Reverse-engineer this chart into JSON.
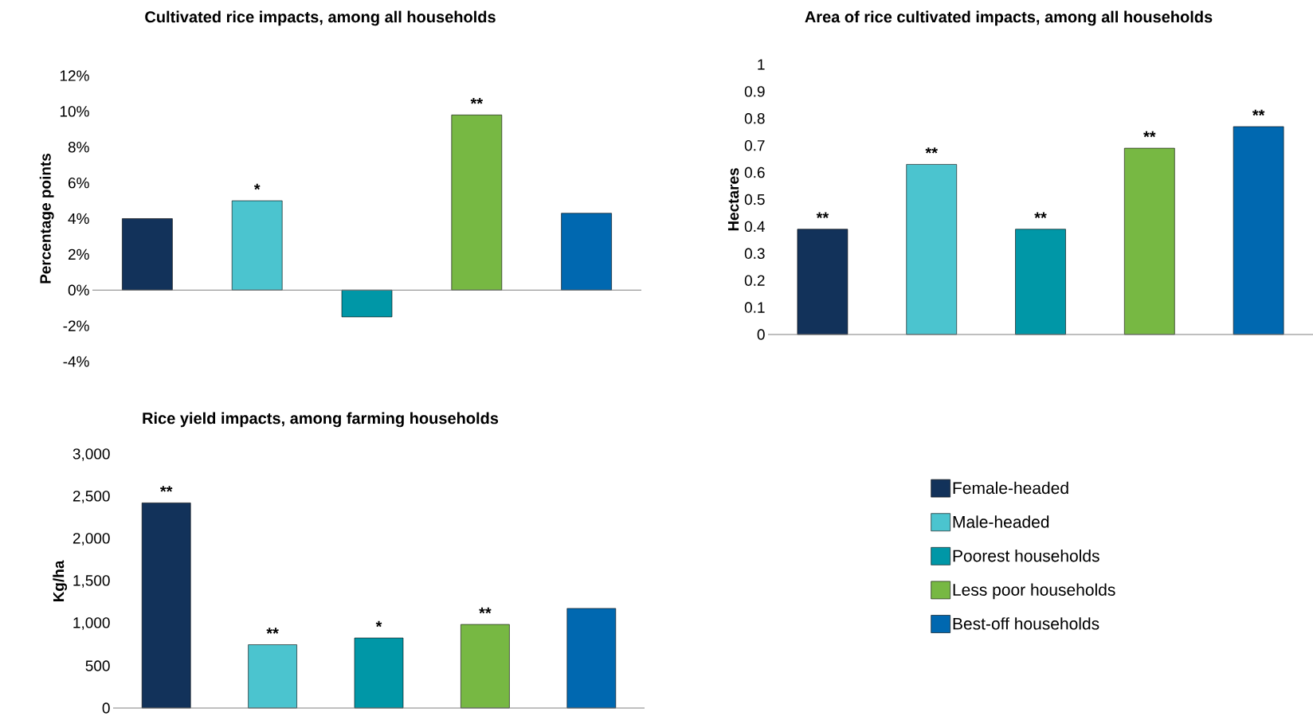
{
  "chart_data": [
    {
      "type": "bar",
      "title": "Cultivated rice impacts, among all households",
      "ylabel": "Percentage points",
      "categories": [
        null,
        null,
        null,
        null,
        null
      ],
      "tick_labels": "y",
      "legend": false,
      "ylim": [
        -4,
        12
      ],
      "yticks": [
        {
          "value": -4,
          "label": "-4%"
        },
        {
          "value": -2,
          "label": "-2%"
        },
        {
          "value": 0,
          "label": "0%"
        },
        {
          "value": 2,
          "label": "2%"
        },
        {
          "value": 4,
          "label": "4%"
        },
        {
          "value": 6,
          "label": "6%"
        },
        {
          "value": 8,
          "label": "8%"
        },
        {
          "value": 10,
          "label": "10%"
        },
        {
          "value": 12,
          "label": "12%"
        }
      ],
      "series": [
        {
          "color": "#12325a",
          "values": [
            4.0,
            null,
            null,
            null,
            null
          ]
        },
        {
          "color": "#4bc4cf",
          "values": [
            null,
            5.0,
            null,
            null,
            null
          ],
          "value_labels": [
            null,
            "*",
            null,
            null,
            null
          ]
        },
        {
          "color": "#0097a7",
          "values": [
            null,
            null,
            -1.5,
            null,
            null
          ]
        },
        {
          "color": "#77b843",
          "values": [
            null,
            null,
            null,
            9.8,
            null
          ],
          "value_labels": [
            null,
            null,
            null,
            "**",
            null
          ]
        },
        {
          "color": "#0068b0",
          "values": [
            null,
            null,
            null,
            null,
            4.3
          ]
        }
      ]
    },
    {
      "type": "bar",
      "title": "Area of rice cultivated impacts, among all households",
      "ylabel": "Hectares",
      "categories": [
        null,
        null,
        null,
        null,
        null
      ],
      "tick_labels": "y",
      "legend": false,
      "ylim": [
        0,
        1
      ],
      "yticks": [
        0,
        0.1,
        0.2,
        0.3,
        0.4,
        0.5,
        0.6,
        0.7,
        0.8,
        0.9,
        1
      ],
      "series": [
        {
          "color": "#12325a",
          "values": [
            0.39,
            null,
            null,
            null,
            null
          ],
          "value_labels": [
            "**",
            null,
            null,
            null,
            null
          ]
        },
        {
          "color": "#4bc4cf",
          "values": [
            null,
            0.63,
            null,
            null,
            null
          ],
          "value_labels": [
            null,
            "**",
            null,
            null,
            null
          ]
        },
        {
          "color": "#0097a7",
          "values": [
            null,
            null,
            0.39,
            null,
            null
          ],
          "value_labels": [
            null,
            null,
            "**",
            null,
            null
          ]
        },
        {
          "color": "#77b843",
          "values": [
            null,
            null,
            null,
            0.69,
            null
          ],
          "value_labels": [
            null,
            null,
            null,
            "**",
            null
          ]
        },
        {
          "color": "#0068b0",
          "values": [
            null,
            null,
            null,
            null,
            0.77
          ],
          "value_labels": [
            null,
            null,
            null,
            null,
            "**"
          ]
        }
      ]
    },
    {
      "type": "bar",
      "title": "Rice yield impacts, among farming households",
      "ylabel": "Kg/ha",
      "categories": [
        null,
        null,
        null,
        null,
        null
      ],
      "tick_labels": "y",
      "legend": "right",
      "ylim": [
        0,
        3000
      ],
      "yticks": [
        0,
        500,
        {
          "value": 1000,
          "label": "1,000"
        },
        {
          "value": 1500,
          "label": "1,500"
        },
        {
          "value": 2000,
          "label": "2,000"
        },
        {
          "value": 2500,
          "label": "2,500"
        },
        {
          "value": 3000,
          "label": "3,000"
        }
      ],
      "series": [
        {
          "name": "Female-headed",
          "color": "#12325a",
          "values": [
            2430,
            null,
            null,
            null,
            null
          ],
          "value_labels": [
            "**",
            null,
            null,
            null,
            null
          ]
        },
        {
          "name": "Male-headed",
          "color": "#4bc4cf",
          "values": [
            null,
            750,
            null,
            null,
            null
          ],
          "value_labels": [
            null,
            "**",
            null,
            null,
            null
          ]
        },
        {
          "name": "Poorest households",
          "color": "#0097a7",
          "values": [
            null,
            null,
            830,
            null,
            null
          ],
          "value_labels": [
            null,
            null,
            "*",
            null,
            null
          ]
        },
        {
          "name": "Less poor households",
          "color": "#77b843",
          "values": [
            null,
            null,
            null,
            990,
            null
          ],
          "value_labels": [
            null,
            null,
            null,
            "**",
            null
          ]
        },
        {
          "name": "Best-off households",
          "color": "#0068b0",
          "values": [
            null,
            null,
            null,
            null,
            1180
          ]
        }
      ]
    }
  ]
}
